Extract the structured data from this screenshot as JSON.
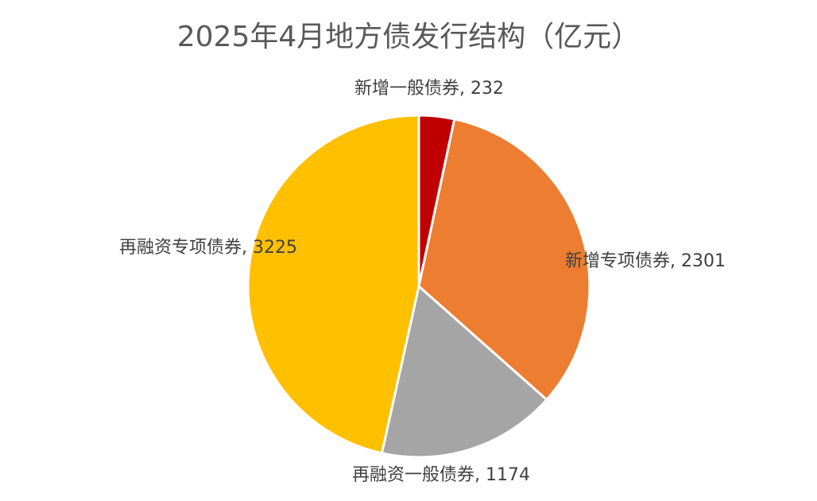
{
  "chart_data": {
    "type": "pie",
    "title": "2025年4月地方债发行结构（亿元）",
    "slices": [
      {
        "label": "新增一般债券",
        "value": 232,
        "color": "#C00000"
      },
      {
        "label": "新增专项债券",
        "value": 2301,
        "color": "#ED7D31"
      },
      {
        "label": "再融资一般债券",
        "value": 1174,
        "color": "#A5A5A5"
      },
      {
        "label": "再融资专项债券",
        "value": 3225,
        "color": "#FFC000"
      }
    ],
    "start_angle": "12 o'clock",
    "direction": "clockwise",
    "legend": "none",
    "data_labels": "category name, value"
  }
}
